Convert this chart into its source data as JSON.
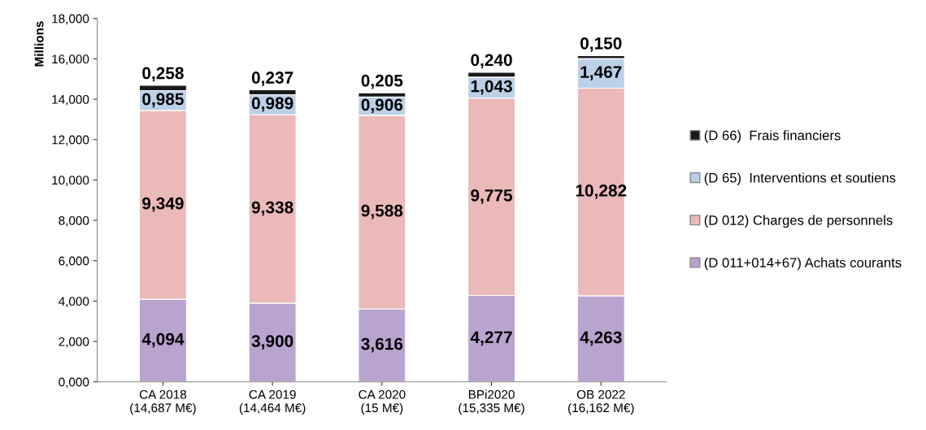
{
  "chart_data": {
    "type": "bar",
    "stacked": true,
    "ylabel": "Millions",
    "categories": [
      "CA 2018\n(14,687 M€)",
      "CA 2019\n(14,464 M€)",
      "CA 2020\n(15 M€)",
      "BPi2020\n(15,335 M€)",
      "OB 2022\n(16,162 M€)"
    ],
    "series": [
      {
        "name": "(D 011+014+67) Achats courants",
        "color": "#b9a3cf",
        "values": [
          4.094,
          3.9,
          3.616,
          4.277,
          4.263
        ],
        "value_labels": [
          "4,094",
          "3,900",
          "3,616",
          "4,277",
          "4,263"
        ]
      },
      {
        "name": "(D 012) Charges de personnels",
        "color": "#eab9b8",
        "values": [
          9.349,
          9.338,
          9.588,
          9.775,
          10.282
        ],
        "value_labels": [
          "9,349",
          "9,338",
          "9,588",
          "9,775",
          "10,282"
        ]
      },
      {
        "name": "(D 65)  Interventions et soutiens",
        "color": "#bcd0e8",
        "values": [
          0.985,
          0.989,
          0.906,
          1.043,
          1.467
        ],
        "value_labels": [
          "0,985",
          "0,989",
          "0,906",
          "1,043",
          "1,467"
        ]
      },
      {
        "name": "(D 66)  Frais financiers",
        "color": "#1a1a1a",
        "values": [
          0.258,
          0.237,
          0.205,
          0.24,
          0.15
        ],
        "value_labels": [
          "0,258",
          "0,237",
          "0,205",
          "0,240",
          "0,150"
        ]
      }
    ],
    "ylim": [
      0,
      18
    ],
    "yticks": [
      {
        "value": 0,
        "label": "0,000"
      },
      {
        "value": 2,
        "label": "2,000"
      },
      {
        "value": 4,
        "label": "4,000"
      },
      {
        "value": 6,
        "label": "6,000"
      },
      {
        "value": 8,
        "label": "8,000"
      },
      {
        "value": 10,
        "label": "10,000"
      },
      {
        "value": 12,
        "label": "12,000"
      },
      {
        "value": 14,
        "label": "14,000"
      },
      {
        "value": 16,
        "label": "16,000"
      },
      {
        "value": 18,
        "label": "18,000"
      }
    ],
    "grid": false,
    "legend": "right"
  }
}
